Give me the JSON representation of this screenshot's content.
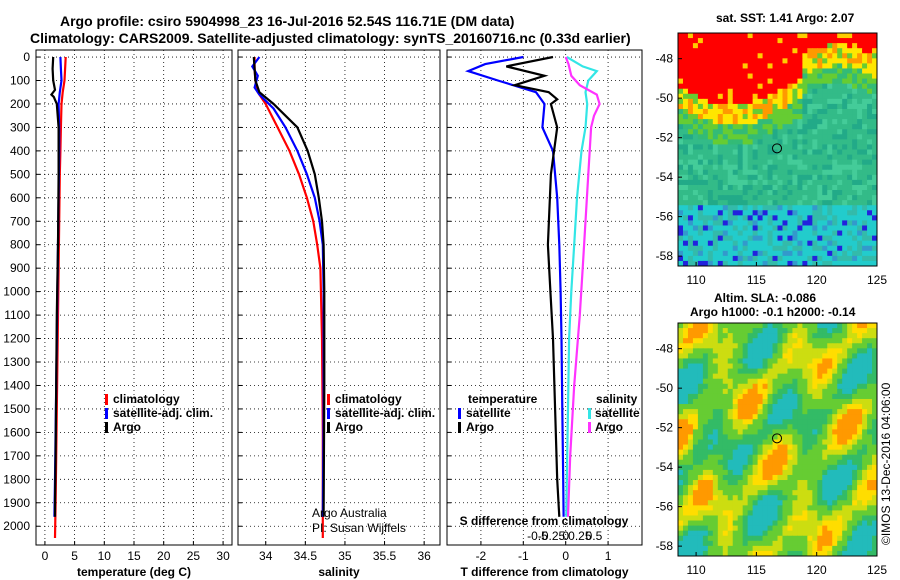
{
  "header": {
    "title1": "Argo profile: csiro 5904998_23 16-Jul-2016 52.54S 116.71E (DM data)",
    "title2": "Climatology: CARS2009. Satellite-adjusted climatology: synTS_20160716.nc (0.33d earlier)"
  },
  "colors": {
    "climatology": "#ff0000",
    "satellite": "#0000ff",
    "argo": "#000000",
    "salinity_argo": "#ff33ff",
    "salinity_satellite": "#33e6e6"
  },
  "chart_data": [
    {
      "type": "line",
      "panel": "temperature",
      "xlabel": "temperature (deg C)",
      "ylabel": "",
      "xlim": [
        -1.5,
        31.5
      ],
      "ylim": [
        2080,
        -30
      ],
      "xticks": [
        0,
        5,
        10,
        15,
        20,
        25,
        30
      ],
      "yticks": [
        0,
        100,
        200,
        300,
        400,
        500,
        600,
        700,
        800,
        900,
        1000,
        1100,
        1200,
        1300,
        1400,
        1500,
        1600,
        1700,
        1800,
        1900,
        2000
      ],
      "legend": [
        "climatology",
        "satellite-adj. clim.",
        "Argo"
      ],
      "series": [
        {
          "name": "climatology",
          "color": "#ff0000",
          "x": [
            3.5,
            3.4,
            3.3,
            3.0,
            2.8,
            2.7,
            2.6,
            2.5,
            2.4,
            2.3,
            2.2,
            2.1,
            2.0,
            1.9,
            1.8,
            1.7
          ],
          "y": [
            0,
            50,
            100,
            150,
            200,
            300,
            400,
            500,
            700,
            900,
            1100,
            1300,
            1500,
            1700,
            1900,
            2050
          ]
        },
        {
          "name": "satellite-adj. clim.",
          "color": "#0000ff",
          "x": [
            2.6,
            2.7,
            2.8,
            2.5,
            2.3,
            2.4,
            2.4,
            2.3,
            2.2,
            2.1,
            2.0,
            1.9,
            1.8,
            1.7,
            1.6
          ],
          "y": [
            0,
            50,
            100,
            150,
            200,
            300,
            400,
            600,
            800,
            1000,
            1200,
            1400,
            1600,
            1800,
            1960
          ]
        },
        {
          "name": "Argo",
          "color": "#000000",
          "x": [
            1.4,
            1.3,
            1.4,
            1.7,
            1.1,
            1.5,
            2.0,
            2.3,
            2.3,
            2.2,
            2.0,
            1.9,
            1.8,
            1.7,
            1.7
          ],
          "y": [
            0,
            50,
            100,
            140,
            160,
            170,
            200,
            300,
            500,
            800,
            1100,
            1400,
            1700,
            1900,
            1960
          ]
        }
      ]
    },
    {
      "type": "line",
      "panel": "salinity",
      "xlabel": "salinity",
      "ylabel": "",
      "xlim": [
        33.65,
        36.2
      ],
      "ylim": [
        2080,
        -30
      ],
      "xticks": [
        34,
        34.5,
        35,
        35.5,
        36
      ],
      "xticklabels": [
        "34",
        "34.5",
        "35",
        "35.5",
        "36"
      ],
      "legend": [
        "climatology",
        "satellite-adj. clim.",
        "Argo"
      ],
      "annotations": [
        "Argo Australia",
        "PI: Susan Wijffels"
      ],
      "series": [
        {
          "name": "climatology",
          "color": "#ff0000",
          "x": [
            33.86,
            33.86,
            33.87,
            33.9,
            34.0,
            34.15,
            34.3,
            34.42,
            34.52,
            34.6,
            34.65,
            34.69,
            34.71,
            34.72,
            34.72
          ],
          "y": [
            0,
            50,
            100,
            150,
            200,
            300,
            400,
            500,
            600,
            700,
            800,
            900,
            1200,
            1600,
            2050
          ]
        },
        {
          "name": "satellite-adj. clim.",
          "color": "#0000ff",
          "x": [
            33.92,
            33.83,
            33.9,
            33.86,
            33.92,
            34.1,
            34.25,
            34.4,
            34.52,
            34.62,
            34.68,
            34.72,
            34.73,
            34.73,
            34.72
          ],
          "y": [
            0,
            40,
            80,
            130,
            160,
            220,
            300,
            400,
            500,
            600,
            700,
            800,
            1000,
            1500,
            1960
          ]
        },
        {
          "name": "Argo",
          "color": "#000000",
          "x": [
            33.85,
            33.86,
            33.87,
            33.92,
            34.1,
            34.25,
            34.4,
            34.53,
            34.62,
            34.67,
            34.71,
            34.73,
            34.74,
            34.74,
            34.73
          ],
          "y": [
            0,
            50,
            100,
            150,
            200,
            250,
            300,
            400,
            500,
            600,
            700,
            800,
            1000,
            1400,
            1960
          ]
        }
      ]
    },
    {
      "type": "line",
      "panel": "difference",
      "xlabel": "T difference from climatology",
      "xlabel_top": "S difference from climatology",
      "xlim": [
        -2.8,
        1.8
      ],
      "ylim": [
        2080,
        -30
      ],
      "xticks": [
        -2,
        -1,
        0,
        1
      ],
      "xticklabels": [
        "-2",
        "-1",
        "0",
        "1"
      ],
      "xticks_salinity": [
        -0.5,
        -0.25,
        0,
        0.25,
        0.5
      ],
      "xticklabels_salinity": [
        "-0.5",
        "-0.25",
        "0",
        "0.25",
        "0.5"
      ],
      "legend_temperature": {
        "heading": "temperature",
        "items": [
          "satellite",
          "Argo"
        ]
      },
      "legend_salinity": {
        "heading": "salinity",
        "items": [
          "satellite",
          "Argo"
        ]
      },
      "series": [
        {
          "name": "temperature satellite",
          "color": "#0000ff",
          "x": [
            -1.0,
            -1.9,
            -2.3,
            -1.6,
            -0.7,
            -0.5,
            -0.55,
            -0.3,
            -0.2,
            -0.15,
            -0.12,
            -0.1,
            -0.08,
            -0.06,
            -0.05
          ],
          "y": [
            0,
            30,
            60,
            100,
            150,
            200,
            300,
            400,
            600,
            800,
            1000,
            1200,
            1500,
            1800,
            1960
          ]
        },
        {
          "name": "temperature Argo",
          "color": "#000000",
          "x": [
            -0.3,
            -1.4,
            -0.5,
            -1.2,
            -0.4,
            -0.2,
            -0.35,
            -0.2,
            -0.35,
            -0.42,
            -0.36,
            -0.3,
            -0.25,
            -0.2,
            -0.15
          ],
          "y": [
            0,
            40,
            80,
            120,
            150,
            180,
            200,
            300,
            500,
            800,
            1000,
            1200,
            1500,
            1800,
            1960
          ]
        },
        {
          "name": "salinity satellite",
          "color": "#33e6e6",
          "x": [
            0.02,
            0.3,
            0.55,
            0.4,
            0.35,
            0.38,
            0.35,
            0.28,
            0.2,
            0.15,
            0.1,
            0.06,
            0.04,
            0.02,
            0.01
          ],
          "y": [
            0,
            40,
            60,
            100,
            150,
            200,
            300,
            400,
            600,
            800,
            1000,
            1200,
            1500,
            1800,
            1960
          ]
        },
        {
          "name": "salinity Argo",
          "color": "#ff33ff",
          "x": [
            0.0,
            0.05,
            0.1,
            0.25,
            0.55,
            0.6,
            0.5,
            0.45,
            0.4,
            0.35,
            0.3,
            0.25,
            0.15,
            0.08,
            0.04
          ],
          "y": [
            0,
            30,
            80,
            120,
            160,
            200,
            250,
            300,
            500,
            700,
            900,
            1100,
            1400,
            1700,
            1960
          ]
        }
      ]
    },
    {
      "type": "heatmap",
      "panel": "sst_map",
      "title": "sat. SST: 1.41  Argo: 2.07",
      "xlim": [
        108.5,
        125
      ],
      "ylim": [
        -58.5,
        -46.7
      ],
      "xticks": [
        110,
        115,
        120,
        125
      ],
      "yticks": [
        -48,
        -50,
        -52,
        -54,
        -56,
        -58
      ],
      "xticklabels": [
        "110",
        "115",
        "120",
        "125"
      ],
      "yticklabels": [
        "-48",
        "-50",
        "-52",
        "-54",
        "-56",
        "-58"
      ],
      "marker": {
        "lon": 116.71,
        "lat": -52.54
      }
    },
    {
      "type": "heatmap",
      "panel": "sla_map",
      "title": "Altim. SLA: -0.086",
      "subtitle": "Argo h1000: -0.1 h2000: -0.14",
      "xlim": [
        108.5,
        125
      ],
      "ylim": [
        -58.5,
        -46.7
      ],
      "xticks": [
        110,
        115,
        120,
        125
      ],
      "yticks": [
        -48,
        -50,
        -52,
        -54,
        -56,
        -58
      ],
      "xticklabels": [
        "110",
        "115",
        "120",
        "125"
      ],
      "yticklabels": [
        "-48",
        "-50",
        "-52",
        "-54",
        "-56",
        "-58"
      ],
      "marker": {
        "lon": 116.71,
        "lat": -52.54
      }
    }
  ],
  "credit": "©IMOS 13-Dec-2016 04:06:00"
}
